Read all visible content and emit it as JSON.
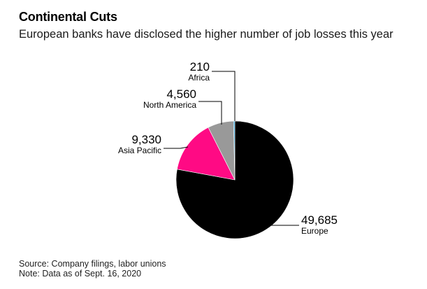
{
  "title": "Continental Cuts",
  "subtitle": "European banks have disclosed the higher number of job losses this year",
  "chart_data": {
    "type": "pie",
    "slices": [
      {
        "label": "Europe",
        "value": 49685,
        "value_label": "49,685",
        "color": "#000000"
      },
      {
        "label": "Asia Pacific",
        "value": 9330,
        "value_label": "9,330",
        "color": "#ff0a84"
      },
      {
        "label": "North America",
        "value": 4560,
        "value_label": "4,560",
        "color": "#999999"
      },
      {
        "label": "Africa",
        "value": 210,
        "value_label": "210",
        "color": "#1e9bd7"
      }
    ],
    "title": "Continental Cuts",
    "subtitle": "European banks have disclosed the higher number of job losses this year",
    "legend": "none",
    "order": "clockwise from top"
  },
  "footer": {
    "source": "Source: Company filings, labor unions",
    "note": "Note: Data as of Sept. 16, 2020"
  }
}
